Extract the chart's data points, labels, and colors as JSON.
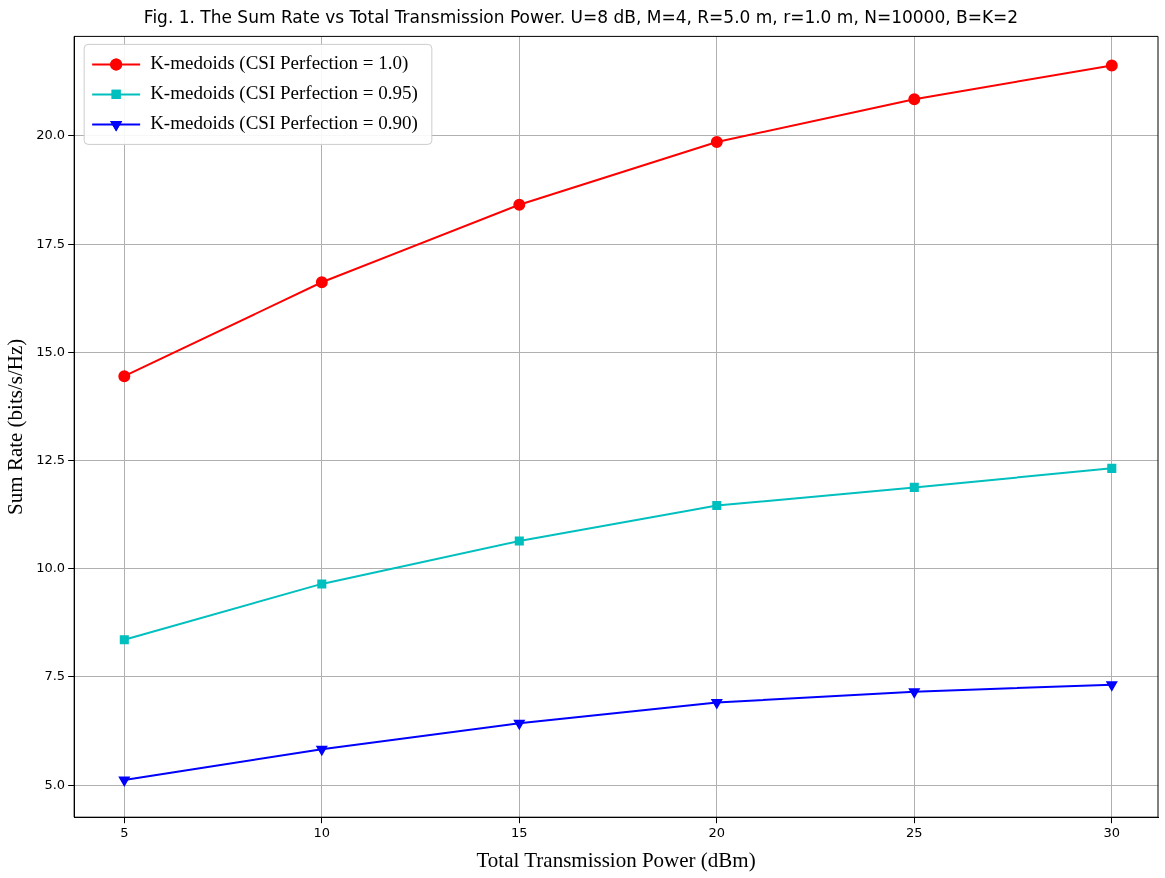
{
  "chart_data": {
    "type": "line",
    "title": "Fig. 1. The Sum Rate vs Total Transmission Power. U=8 dB, M=4, R=5.0 m, r=1.0 m, N=10000, B=K=2",
    "xlabel": "Total Transmission Power (dBm)",
    "ylabel": "Sum Rate (bits/s/Hz)",
    "x": [
      5,
      10,
      15,
      20,
      25,
      30
    ],
    "series": [
      {
        "name": "K-medoids (CSI Perfection = 1.0)",
        "color": "#ff0000",
        "marker": "circle",
        "values": [
          14.45,
          16.62,
          18.41,
          19.86,
          20.85,
          21.63
        ]
      },
      {
        "name": "K-medoids (CSI Perfection = 0.95)",
        "color": "#00bfbf",
        "marker": "square",
        "values": [
          8.36,
          9.65,
          10.64,
          11.46,
          11.88,
          12.32
        ]
      },
      {
        "name": "K-medoids (CSI Perfection = 0.90)",
        "color": "#0000ff",
        "marker": "triangle_down",
        "values": [
          5.12,
          5.83,
          6.43,
          6.91,
          7.16,
          7.32
        ]
      }
    ],
    "xlim": [
      3.73,
      31.17
    ],
    "xticks": [
      5,
      10,
      15,
      20,
      25,
      30
    ],
    "ylim": [
      4.26,
      22.3
    ],
    "yticks": [
      {
        "value": 5,
        "label": "5.0"
      },
      {
        "value": 7.5,
        "label": "7.5"
      },
      {
        "value": 10,
        "label": "10.0"
      },
      {
        "value": 12.5,
        "label": "12.5"
      },
      {
        "value": 15,
        "label": "15.0"
      },
      {
        "value": 17.5,
        "label": "17.5"
      },
      {
        "value": 20,
        "label": "20.0"
      }
    ],
    "grid": true,
    "legend": "top left",
    "line_style": "solid"
  }
}
